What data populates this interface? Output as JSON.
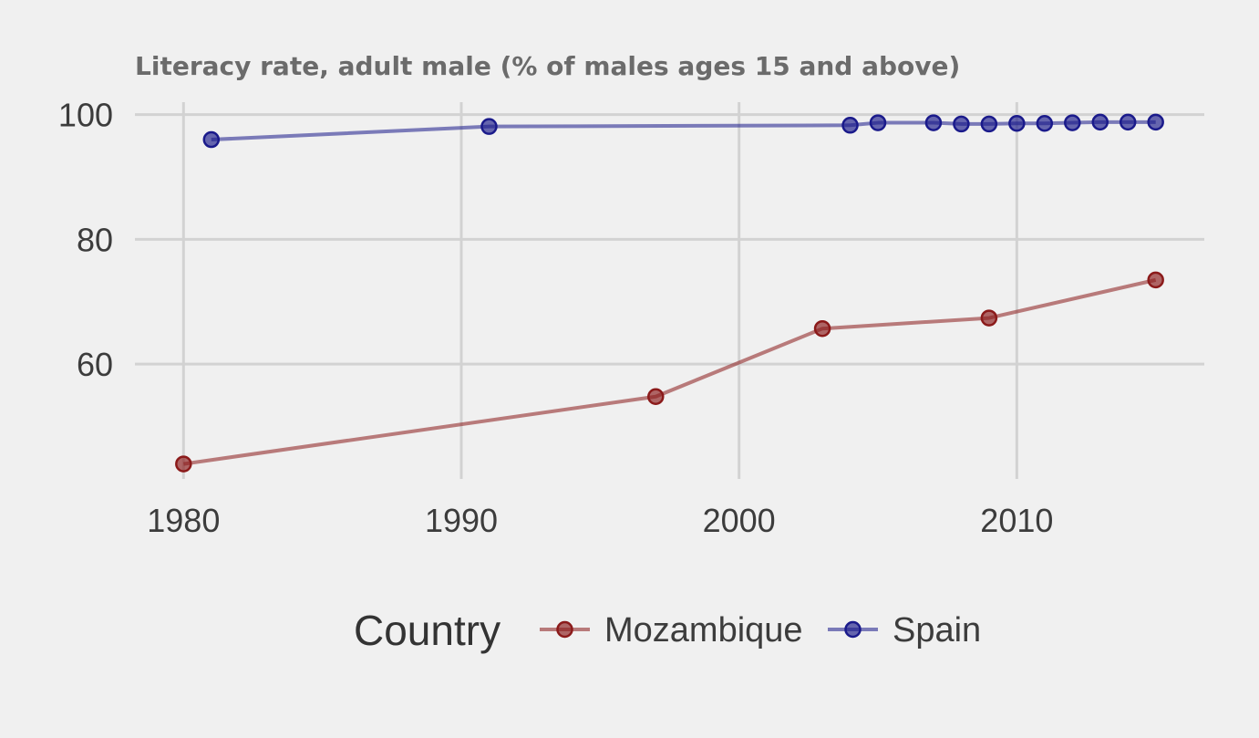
{
  "chart_data": {
    "type": "line",
    "title": "Literacy rate, adult male (% of males ages 15 and above)",
    "xlabel": "",
    "ylabel": "",
    "xlim": [
      1978.25,
      2016.75
    ],
    "ylim": [
      41.6,
      102
    ],
    "x_ticks": [
      1980,
      1990,
      2000,
      2010
    ],
    "y_ticks": [
      60,
      80,
      100
    ],
    "grid": true,
    "legend": {
      "title": "Country",
      "position": "bottom"
    },
    "series": [
      {
        "name": "Mozambique",
        "color": "#8b1a1a",
        "x": [
          1980,
          1997,
          2003,
          2009,
          2015
        ],
        "values": [
          44.0,
          54.8,
          65.7,
          67.4,
          73.5
        ]
      },
      {
        "name": "Spain",
        "color": "#1a1a8b",
        "x": [
          1981,
          1991,
          2004,
          2005,
          2007,
          2008,
          2009,
          2010,
          2011,
          2012,
          2013,
          2014,
          2015
        ],
        "values": [
          96.0,
          98.1,
          98.3,
          98.7,
          98.7,
          98.5,
          98.5,
          98.6,
          98.6,
          98.7,
          98.8,
          98.8,
          98.8
        ]
      }
    ]
  }
}
